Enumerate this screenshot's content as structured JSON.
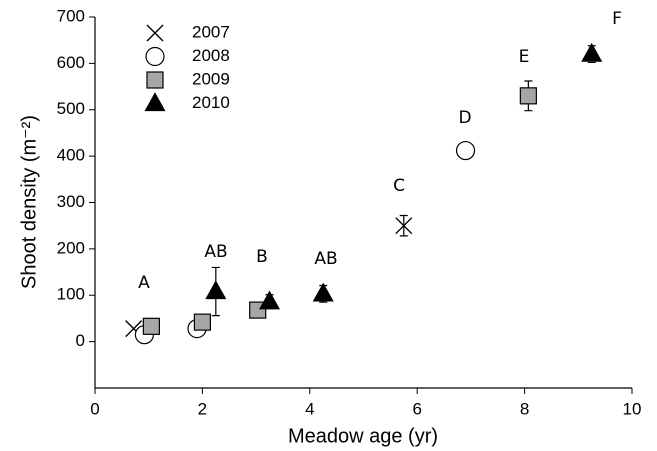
{
  "chart_data": {
    "type": "scatter",
    "xlabel": "Meadow age (yr)",
    "ylabel": "Shoot density (m⁻²)",
    "xlim": [
      0,
      10
    ],
    "xticks": [
      0,
      2,
      4,
      6,
      8,
      10
    ],
    "ylim": [
      -100,
      700
    ],
    "yticks": [
      0,
      100,
      200,
      300,
      400,
      500,
      600,
      700
    ],
    "legend": "upper left",
    "annotations": [
      "A",
      "AB",
      "B",
      "AB",
      "C",
      "D",
      "E",
      "F"
    ],
    "series": [
      {
        "name": "2007",
        "marker": "x",
        "color": "#000000",
        "x": [
          0.72,
          5.75
        ],
        "values": [
          28,
          250
        ],
        "errors": [
          null,
          22
        ]
      },
      {
        "name": "2008",
        "marker": "circle",
        "color": "#ffffff",
        "x": [
          0.92,
          1.9,
          6.9
        ],
        "values": [
          15,
          28,
          412
        ],
        "errors": [
          null,
          null,
          15
        ]
      },
      {
        "name": "2009",
        "marker": "square",
        "color": "#a6a6a6",
        "x": [
          1.05,
          2.0,
          3.03,
          8.07
        ],
        "values": [
          33,
          42,
          68,
          530
        ],
        "errors": [
          null,
          null,
          null,
          32
        ]
      },
      {
        "name": "2010",
        "marker": "triangle",
        "color": "#000000",
        "x": [
          2.25,
          3.25,
          4.25,
          9.25
        ],
        "values": [
          108,
          86,
          103,
          620
        ],
        "errors": [
          52,
          15,
          18,
          18
        ]
      }
    ]
  }
}
